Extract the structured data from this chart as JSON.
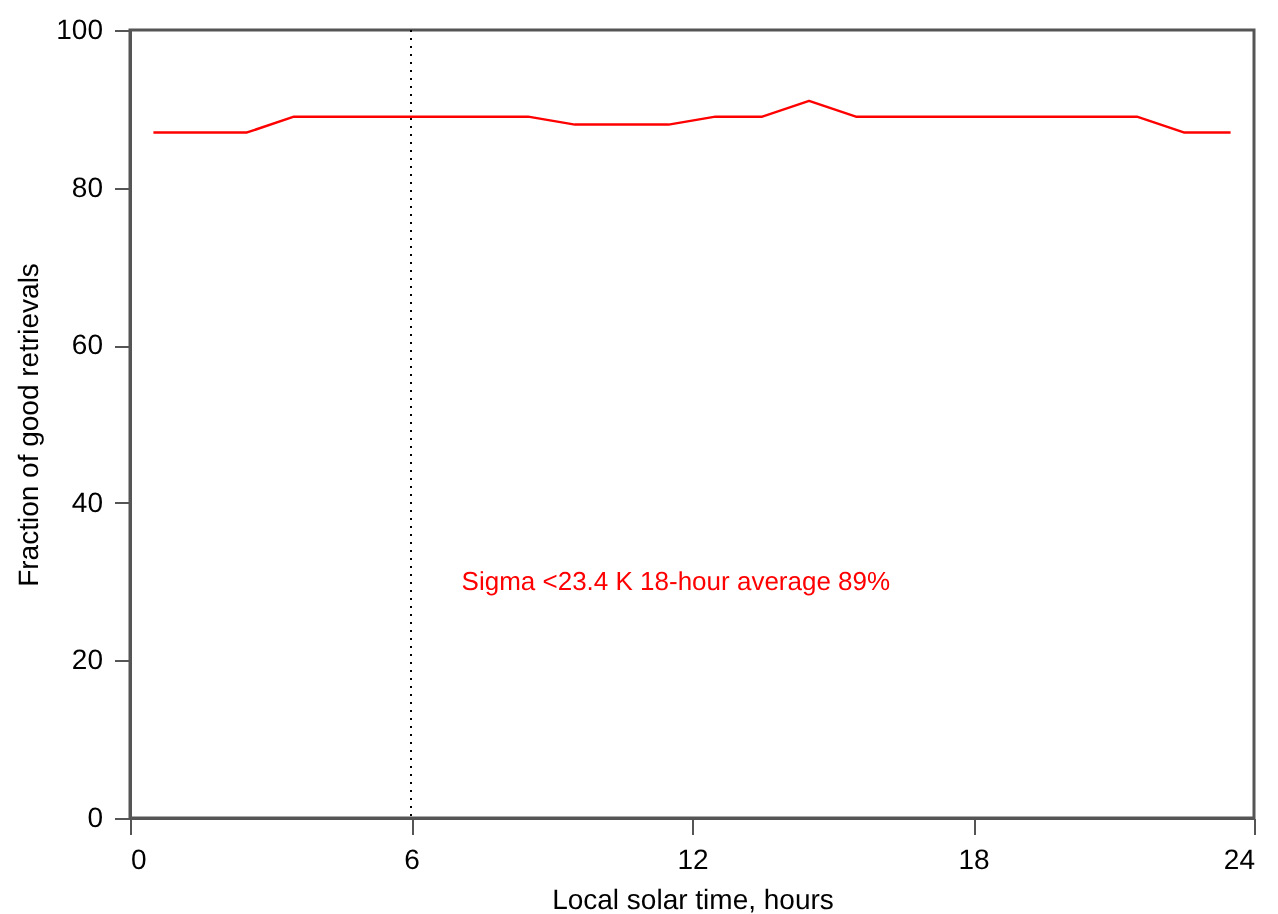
{
  "chart_data": {
    "type": "line",
    "xlabel": "Local solar time, hours",
    "ylabel": "Fraction of good retrievals",
    "x": [
      0.5,
      1.5,
      2.5,
      3.5,
      4.5,
      5.5,
      6.5,
      7.5,
      8.5,
      9.5,
      10.5,
      11.5,
      12.5,
      13.5,
      14.5,
      15.5,
      16.5,
      17.5,
      18.5,
      19.5,
      20.5,
      21.5,
      22.5,
      23.5
    ],
    "series": [
      {
        "color": "#ff0000",
        "values": [
          87,
          87,
          87,
          89,
          89,
          89,
          89,
          89,
          89,
          88,
          88,
          88,
          89,
          89,
          91,
          89,
          89,
          89,
          89,
          89,
          89,
          89,
          87,
          87
        ]
      }
    ],
    "xlim": [
      0,
      24
    ],
    "xticks": [
      0,
      6,
      12,
      18,
      24
    ],
    "ylim": [
      0,
      100
    ],
    "yticks": [
      0,
      20,
      40,
      60,
      80,
      100
    ],
    "ref_lines": [
      {
        "axis": "x",
        "value": 6,
        "color": "#000000",
        "line_style": "dotted"
      }
    ],
    "annotations": [
      "Sigma <23.4 K   18-hour average 89%"
    ],
    "grid": false,
    "marker": "none",
    "line_style": "solid"
  }
}
